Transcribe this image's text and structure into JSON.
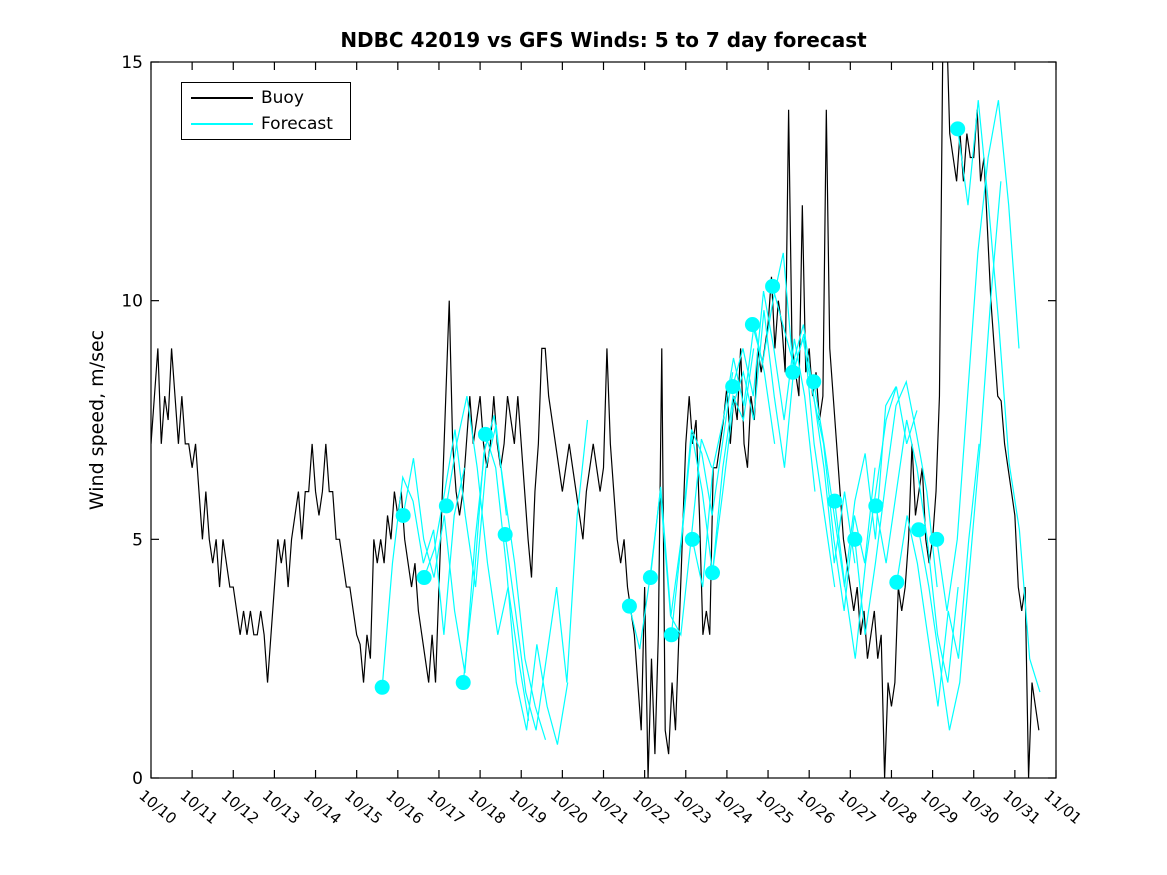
{
  "title": "NDBC 42019 vs GFS Winds: 5 to 7 day forecast",
  "legend": {
    "items": [
      {
        "label": "Buoy",
        "color": "#000000"
      },
      {
        "label": "Forecast",
        "color": "#00FFFF"
      }
    ]
  },
  "chart_data": {
    "type": "line",
    "title": "NDBC 42019 vs GFS Winds: 5 to 7 day forecast",
    "xlabel": "",
    "ylabel": "Wind speed, m/sec",
    "ylim": [
      0,
      15
    ],
    "yticks": [
      0,
      5,
      10,
      15
    ],
    "xtick_labels": [
      "10/10",
      "10/11",
      "10/12",
      "10/13",
      "10/14",
      "10/15",
      "10/16",
      "10/17",
      "10/18",
      "10/19",
      "10/20",
      "10/21",
      "10/22",
      "10/23",
      "10/24",
      "10/25",
      "10/26",
      "10/27",
      "10/28",
      "10/29",
      "10/30",
      "10/31",
      "11/01"
    ],
    "x_range_days": [
      0,
      22
    ],
    "grid": false,
    "legend_position": "top-left",
    "series": [
      {
        "name": "Buoy",
        "color": "#000000",
        "style": "stepped-observations",
        "t_start_days": 0,
        "t_step_hours": 2,
        "values": [
          7,
          8,
          9,
          7,
          8,
          7.5,
          9,
          8,
          7,
          8,
          7,
          7,
          6.5,
          7,
          6,
          5,
          6,
          5,
          4.5,
          5,
          4,
          5,
          4.5,
          4,
          4,
          3.5,
          3,
          3.5,
          3,
          3.5,
          3,
          3,
          3.5,
          3,
          2,
          3,
          4,
          5,
          4.5,
          5,
          4,
          5,
          5.5,
          6,
          5,
          6,
          6,
          7,
          6,
          5.5,
          6,
          7,
          6,
          6,
          5,
          5,
          4.5,
          4,
          4,
          3.5,
          3,
          2.8,
          2,
          3,
          2.5,
          5,
          4.5,
          5,
          4.5,
          5.5,
          5,
          6,
          5.5,
          6,
          5,
          4.5,
          4,
          4.5,
          3.5,
          3,
          2.5,
          2,
          3,
          2,
          4,
          6,
          8,
          10,
          7,
          6,
          5.5,
          6,
          7,
          8,
          7,
          7.5,
          8,
          7,
          6.5,
          7,
          8,
          7,
          6.5,
          7,
          8,
          7.5,
          7,
          8,
          7,
          6,
          5,
          4.2,
          6,
          7,
          9,
          9,
          8,
          7.5,
          7,
          6.5,
          6,
          6.5,
          7,
          6.5,
          6,
          5.5,
          5,
          6,
          6.5,
          7,
          6.5,
          6,
          6.5,
          9,
          7,
          6,
          5,
          4.5,
          5,
          4,
          3.5,
          3,
          2,
          1,
          4,
          0,
          2.5,
          0.5,
          3,
          9,
          1,
          0.5,
          2,
          1,
          3,
          5,
          7,
          8,
          7,
          7.5,
          5.5,
          3,
          3.5,
          3,
          6.5,
          6.5,
          7,
          7.5,
          8.2,
          7,
          8,
          7.5,
          9,
          7,
          6.5,
          8,
          7.5,
          9,
          8.5,
          9,
          9.5,
          10.5,
          9,
          10,
          9.5,
          8.5,
          14,
          9,
          8.5,
          8,
          12,
          8.5,
          9,
          8,
          8.5,
          7.5,
          8,
          14,
          9,
          8,
          7,
          6,
          5,
          4.5,
          4,
          3.5,
          4,
          3,
          3.5,
          2.5,
          3,
          3.5,
          2.5,
          3,
          0,
          2,
          1.5,
          2,
          4,
          3.5,
          4,
          5,
          7,
          5.5,
          6,
          6.5,
          5,
          4.5,
          5,
          6,
          8,
          15.5,
          16,
          13.5,
          13,
          12.5,
          13.5,
          12.5,
          13.5,
          13,
          13,
          14,
          12.5,
          13,
          11.5,
          10,
          9,
          8,
          7.9,
          7,
          6.5,
          6,
          5.5,
          4,
          3.5,
          4,
          0,
          2,
          1.5,
          1
        ]
      },
      {
        "name": "Forecast",
        "color": "#00FFFF",
        "style": "forecast-traces",
        "marker": {
          "shape": "filled-circle",
          "radius_px": 7.5,
          "at_trace_start": true
        },
        "traces": [
          {
            "t0_days": 5.62,
            "t_step_hours": 6,
            "values": [
              1.9,
              4.5,
              6.3,
              5.8,
              4.5,
              5.2,
              3.0,
              5.5,
              6.5
            ]
          },
          {
            "t0_days": 6.13,
            "t_step_hours": 6,
            "values": [
              5.5,
              6.7,
              5.0,
              4.2,
              5.5,
              3.5,
              2.2,
              5.0,
              7.0
            ]
          },
          {
            "t0_days": 6.64,
            "t_step_hours": 6,
            "values": [
              4.2,
              4.8,
              6.0,
              7.3,
              5.5,
              4.0,
              6.5,
              7.4,
              5.5
            ]
          },
          {
            "t0_days": 7.18,
            "t_step_hours": 6,
            "values": [
              5.7,
              7.0,
              8.0,
              6.5,
              4.5,
              3.0,
              4.0,
              2.5,
              1.2
            ]
          },
          {
            "t0_days": 7.59,
            "t_step_hours": 6,
            "values": [
              2.0,
              4.0,
              6.8,
              7.6,
              6.0,
              4.5,
              2.5,
              1.5,
              0.8
            ]
          },
          {
            "t0_days": 8.13,
            "t_step_hours": 6,
            "values": [
              7.2,
              6.5,
              4.5,
              2.0,
              1.0,
              2.8,
              1.5,
              0.7,
              2.0
            ]
          },
          {
            "t0_days": 8.61,
            "t_step_hours": 6,
            "values": [
              5.1,
              3.5,
              1.8,
              1.0,
              2.5,
              4.0,
              2.0,
              5.5,
              7.5
            ]
          },
          {
            "t0_days": 11.63,
            "t_step_hours": 6,
            "values": [
              3.6,
              2.7,
              4.2,
              6.0,
              3.4,
              3.0,
              5.0,
              7.1,
              6.5
            ]
          },
          {
            "t0_days": 12.14,
            "t_step_hours": 6,
            "values": [
              4.2,
              6.1,
              3.4,
              5.0,
              7.3,
              6.8,
              5.5,
              7.0,
              8.5
            ]
          },
          {
            "t0_days": 12.65,
            "t_step_hours": 6,
            "values": [
              3.0,
              5.0,
              7.2,
              6.0,
              4.3,
              6.5,
              8.0,
              7.5,
              9.0
            ]
          },
          {
            "t0_days": 13.16,
            "t_step_hours": 6,
            "values": [
              5.0,
              4.0,
              6.5,
              7.5,
              8.8,
              7.8,
              9.5,
              8.5,
              7.0
            ]
          },
          {
            "t0_days": 13.65,
            "t_step_hours": 6,
            "values": [
              4.3,
              6.0,
              7.8,
              8.5,
              7.5,
              9.8,
              8.0,
              6.5,
              8.8
            ]
          },
          {
            "t0_days": 14.14,
            "t_step_hours": 6,
            "values": [
              8.2,
              9.0,
              8.0,
              10.2,
              9.0,
              7.5,
              9.2,
              8.0,
              6.0
            ]
          },
          {
            "t0_days": 14.62,
            "t_step_hours": 6,
            "values": [
              9.5,
              8.7,
              10.0,
              11.0,
              8.5,
              9.3,
              7.0,
              5.5,
              4.0
            ]
          },
          {
            "t0_days": 15.11,
            "t_step_hours": 6,
            "values": [
              10.3,
              9.5,
              8.7,
              9.5,
              8.0,
              6.5,
              4.5,
              6.0,
              4.5
            ]
          },
          {
            "t0_days": 15.6,
            "t_step_hours": 6,
            "values": [
              8.5,
              9.2,
              8.0,
              7.0,
              5.0,
              3.5,
              5.5,
              4.5,
              6.5
            ]
          },
          {
            "t0_days": 16.11,
            "t_step_hours": 6,
            "values": [
              8.3,
              7.0,
              5.5,
              4.0,
              5.8,
              6.8,
              5.0,
              7.8,
              8.2
            ]
          },
          {
            "t0_days": 16.62,
            "t_step_hours": 6,
            "values": [
              5.8,
              4.0,
              2.5,
              4.5,
              6.0,
              7.5,
              8.2,
              7.0,
              7.7
            ]
          },
          {
            "t0_days": 17.11,
            "t_step_hours": 6,
            "values": [
              5.0,
              3.0,
              4.5,
              6.2,
              7.8,
              8.3,
              7.2,
              6.0,
              4.0
            ]
          },
          {
            "t0_days": 17.62,
            "t_step_hours": 6,
            "values": [
              5.7,
              4.5,
              6.0,
              7.5,
              6.5,
              5.0,
              3.0,
              2.0,
              4.0
            ]
          },
          {
            "t0_days": 18.13,
            "t_step_hours": 6,
            "values": [
              4.1,
              5.5,
              4.5,
              3.0,
              1.5,
              3.5,
              2.5,
              5.0,
              7.0
            ]
          },
          {
            "t0_days": 18.66,
            "t_step_hours": 6,
            "values": [
              5.2,
              4.0,
              2.5,
              1.0,
              2.0,
              4.5,
              7.0,
              10.0,
              12.5
            ]
          },
          {
            "t0_days": 19.1,
            "t_step_hours": 6,
            "values": [
              5.0,
              3.5,
              5.0,
              8.0,
              11.0,
              13.0,
              14.2,
              12.0,
              9.0
            ]
          },
          {
            "t0_days": 19.61,
            "t_step_hours": 6,
            "values": [
              13.6,
              12.0,
              14.2,
              12.0,
              9.5,
              6.6,
              5.2,
              2.5,
              1.8
            ]
          }
        ]
      }
    ]
  }
}
